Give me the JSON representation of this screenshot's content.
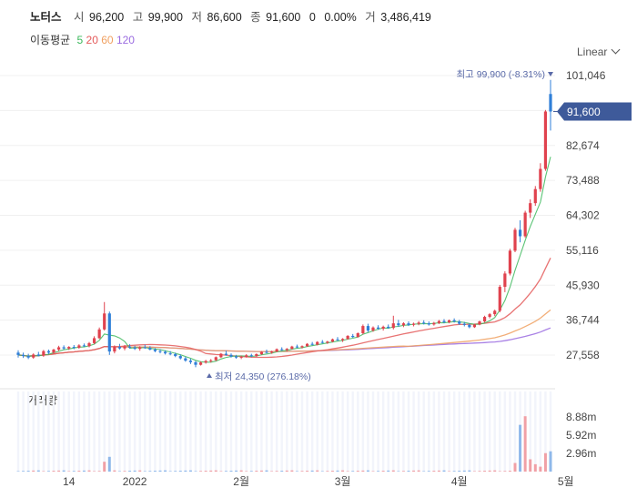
{
  "header": {
    "name": "노터스",
    "open_label": "시",
    "open": "96,200",
    "high_label": "고",
    "high": "99,900",
    "low_label": "저",
    "low": "86,600",
    "close_label": "종",
    "close": "91,600",
    "change": "0",
    "change_pct": "0.00%",
    "volume_label": "거",
    "volume": "3,486,419"
  },
  "ma_legend": {
    "title": "이동평균",
    "ma5": "5",
    "ma20": "20",
    "ma60": "60",
    "ma120": "120"
  },
  "scale_toggle": "Linear",
  "colors": {
    "up": "#e0424e",
    "down": "#2f7fd8",
    "ma5": "#3cb85c",
    "ma20": "#e45a5a",
    "ma60": "#f0a060",
    "ma120": "#9a6be0",
    "price_tag": "#3e5a9a"
  },
  "chart_data": {
    "type": "candlestick",
    "y_ticks": [
      "101,046",
      "91,860",
      "82,674",
      "73,488",
      "64,302",
      "55,116",
      "45,930",
      "36,744",
      "27,558"
    ],
    "y_tick_values": [
      101046,
      91860,
      82674,
      73488,
      64302,
      55116,
      45930,
      36744,
      27558
    ],
    "x_ticks": [
      {
        "label": "14",
        "index": 10
      },
      {
        "label": "2022",
        "index": 23
      },
      {
        "label": "2월",
        "index": 44
      },
      {
        "label": "3월",
        "index": 64
      },
      {
        "label": "4월",
        "index": 87
      },
      {
        "label": "5월",
        "index": 108
      }
    ],
    "current_price": "91,600",
    "current_price_value": 91600,
    "high_annotation": "최고 99,900 (-8.31%)",
    "high_value": 99900,
    "low_annotation": "최저 24,350 (276.18%)",
    "low_value": 24350,
    "candles": [
      [
        28200,
        28800,
        26900,
        27600
      ],
      [
        27600,
        28200,
        26800,
        27300
      ],
      [
        27300,
        27900,
        26500,
        26900
      ],
      [
        26900,
        28000,
        26600,
        27700
      ],
      [
        27700,
        28400,
        27200,
        27400
      ],
      [
        27400,
        28900,
        27100,
        28600
      ],
      [
        28600,
        29000,
        27800,
        28200
      ],
      [
        28200,
        29200,
        27900,
        29000
      ],
      [
        29000,
        30000,
        28600,
        29600
      ],
      [
        29600,
        30100,
        29000,
        29300
      ],
      [
        29300,
        29900,
        28900,
        29700
      ],
      [
        29700,
        30200,
        29100,
        29500
      ],
      [
        29500,
        30400,
        29200,
        30100
      ],
      [
        30100,
        30600,
        29700,
        29900
      ],
      [
        29900,
        31000,
        29600,
        30700
      ],
      [
        30700,
        32500,
        30400,
        32000
      ],
      [
        32000,
        34800,
        31800,
        34300
      ],
      [
        34300,
        41500,
        34000,
        38500
      ],
      [
        38500,
        39000,
        27600,
        28500
      ],
      [
        28500,
        30100,
        28000,
        29700
      ],
      [
        29700,
        30500,
        29000,
        29300
      ],
      [
        29300,
        30200,
        28800,
        29800
      ],
      [
        29800,
        30400,
        29300,
        29500
      ],
      [
        29500,
        30000,
        28900,
        29200
      ],
      [
        29200,
        29900,
        28700,
        29600
      ],
      [
        29600,
        30300,
        29200,
        29400
      ],
      [
        29400,
        29900,
        28800,
        29000
      ],
      [
        29000,
        29400,
        28300,
        28600
      ],
      [
        28600,
        29100,
        28000,
        28400
      ],
      [
        28400,
        28800,
        27700,
        28000
      ],
      [
        28000,
        28600,
        27500,
        27800
      ],
      [
        27800,
        28200,
        27000,
        27300
      ],
      [
        27300,
        27700,
        26400,
        26700
      ],
      [
        26700,
        27100,
        25800,
        26100
      ],
      [
        26100,
        26600,
        25200,
        25700
      ],
      [
        25700,
        26000,
        24350,
        25000
      ],
      [
        25000,
        25900,
        24800,
        25600
      ],
      [
        25600,
        26300,
        25300,
        26000
      ],
      [
        26000,
        26500,
        25600,
        26200
      ],
      [
        26200,
        27200,
        26000,
        27000
      ],
      [
        27000,
        28100,
        26800,
        27900
      ],
      [
        27900,
        28700,
        27400,
        27600
      ],
      [
        27600,
        28000,
        26900,
        27200
      ],
      [
        27200,
        27600,
        26600,
        26900
      ],
      [
        26900,
        27400,
        26500,
        27100
      ],
      [
        27100,
        27800,
        26900,
        27500
      ],
      [
        27500,
        27900,
        27000,
        27300
      ],
      [
        27300,
        28000,
        27100,
        27800
      ],
      [
        27800,
        28600,
        27600,
        28400
      ],
      [
        28400,
        29000,
        28000,
        28200
      ],
      [
        28200,
        28700,
        27900,
        28500
      ],
      [
        28500,
        29300,
        28300,
        29100
      ],
      [
        29100,
        29600,
        28700,
        28900
      ],
      [
        28900,
        29400,
        28500,
        29200
      ],
      [
        29200,
        30000,
        29000,
        29800
      ],
      [
        29800,
        30300,
        29400,
        29600
      ],
      [
        29600,
        30100,
        29300,
        29900
      ],
      [
        29900,
        30700,
        29700,
        30500
      ],
      [
        30500,
        31000,
        30100,
        30300
      ],
      [
        30300,
        31200,
        30100,
        31000
      ],
      [
        31000,
        31500,
        30600,
        30800
      ],
      [
        30800,
        31300,
        30500,
        31100
      ],
      [
        31100,
        31900,
        30900,
        31700
      ],
      [
        31700,
        32300,
        31300,
        31500
      ],
      [
        31500,
        32000,
        31000,
        31800
      ],
      [
        31800,
        32800,
        31600,
        32600
      ],
      [
        32600,
        33100,
        32100,
        32300
      ],
      [
        32300,
        33500,
        32200,
        33300
      ],
      [
        33300,
        35600,
        33000,
        35200
      ],
      [
        35200,
        35800,
        33600,
        34000
      ],
      [
        34000,
        35100,
        33700,
        34800
      ],
      [
        34800,
        35400,
        34200,
        34500
      ],
      [
        34500,
        35300,
        34000,
        35000
      ],
      [
        35000,
        35600,
        34500,
        34700
      ],
      [
        34700,
        37900,
        34300,
        35900
      ],
      [
        35900,
        36800,
        35000,
        35400
      ],
      [
        35400,
        36200,
        34900,
        35900
      ],
      [
        35900,
        36400,
        35200,
        35500
      ],
      [
        35500,
        36100,
        35100,
        35800
      ],
      [
        35800,
        36500,
        35400,
        36100
      ],
      [
        36100,
        36700,
        35600,
        35900
      ],
      [
        35900,
        36400,
        35300,
        35600
      ],
      [
        35600,
        36300,
        35300,
        36000
      ],
      [
        36000,
        36800,
        35700,
        36500
      ],
      [
        36500,
        37000,
        35900,
        36200
      ],
      [
        36200,
        36900,
        35900,
        36700
      ],
      [
        36700,
        37200,
        36100,
        36400
      ],
      [
        36400,
        36800,
        35500,
        35800
      ],
      [
        35800,
        36300,
        35100,
        35500
      ],
      [
        35500,
        35900,
        34600,
        34900
      ],
      [
        34900,
        35800,
        34700,
        35600
      ],
      [
        35600,
        36600,
        35400,
        36400
      ],
      [
        36400,
        37900,
        36100,
        37600
      ],
      [
        37600,
        38600,
        37200,
        38300
      ],
      [
        38300,
        39500,
        37800,
        39200
      ],
      [
        39200,
        46000,
        38800,
        45500
      ],
      [
        45500,
        49600,
        44100,
        49000
      ],
      [
        49000,
        55500,
        48500,
        55000
      ],
      [
        55000,
        61000,
        54600,
        60500
      ],
      [
        60500,
        63000,
        57200,
        58800
      ],
      [
        58800,
        65500,
        58400,
        65000
      ],
      [
        65000,
        68500,
        63600,
        67500
      ],
      [
        67500,
        72000,
        66800,
        71200
      ],
      [
        71200,
        78000,
        70500,
        76500
      ],
      [
        76500,
        92000,
        76000,
        91600
      ],
      [
        96200,
        99900,
        86600,
        91600
      ]
    ],
    "volume_axis_ticks": [
      "8.88m",
      "5.92m",
      "2.96m"
    ],
    "volume_axis_values": [
      8880000,
      5920000,
      2960000
    ],
    "volume_title": "거래량"
  }
}
